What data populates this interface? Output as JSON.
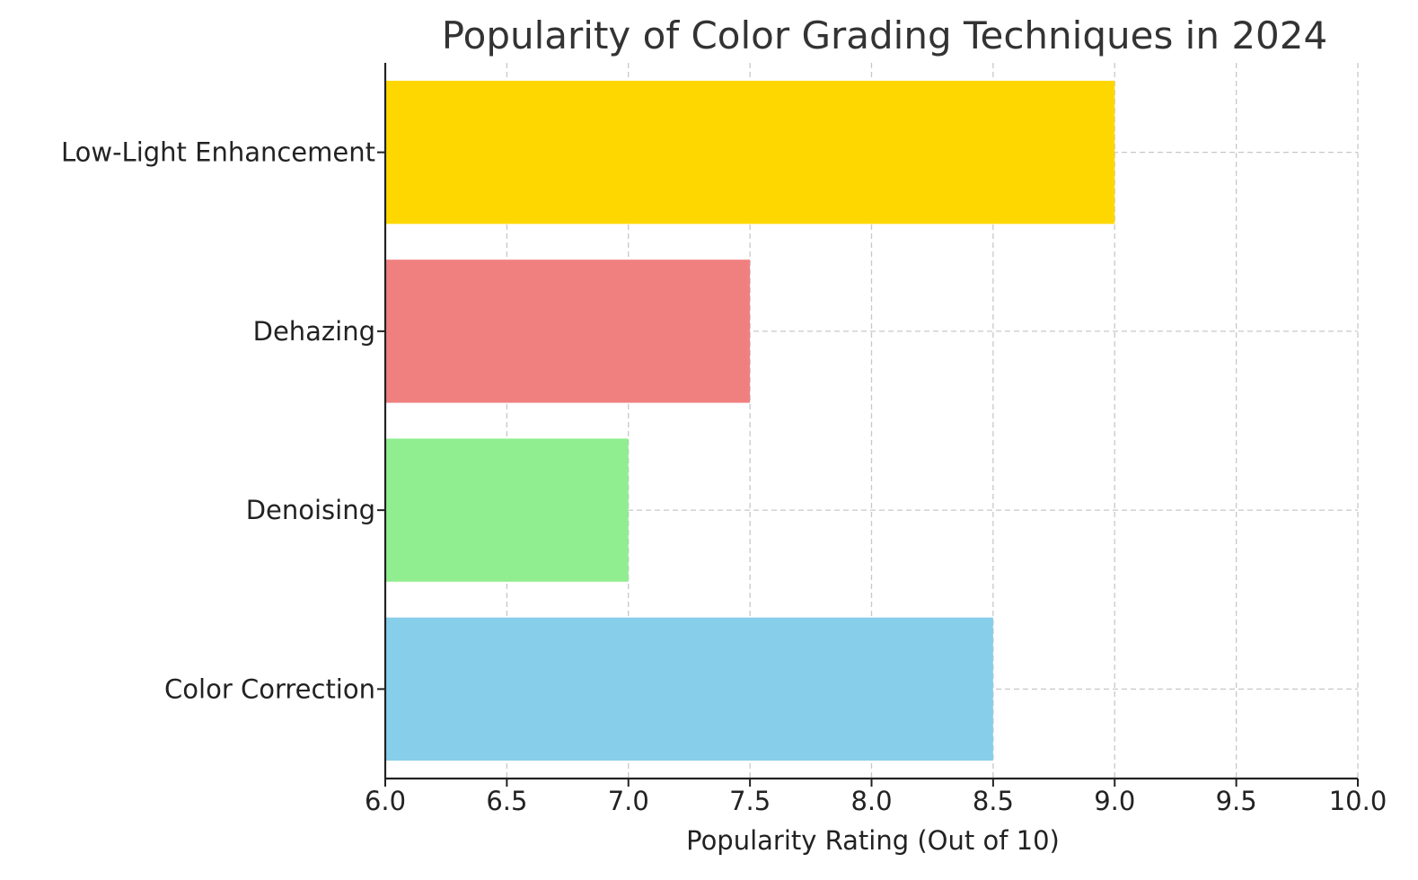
{
  "chart_data": {
    "type": "bar",
    "orientation": "horizontal",
    "title": "Popularity of Color Grading Techniques in 2024",
    "xlabel": "Popularity Rating (Out of 10)",
    "ylabel": "",
    "categories": [
      "Color Correction",
      "Denoising",
      "Dehazing",
      "Low-Light Enhancement"
    ],
    "values": [
      8.5,
      7.0,
      7.5,
      9.0
    ],
    "colors": [
      "#87ceeb",
      "#90ee90",
      "#f08080",
      "#ffd700"
    ],
    "xlim": [
      6.0,
      10.0
    ],
    "xticks": [
      "6.0",
      "6.5",
      "7.0",
      "7.5",
      "8.0",
      "8.5",
      "9.0",
      "9.5",
      "10.0"
    ],
    "grid": true,
    "grid_style": "dashed"
  }
}
